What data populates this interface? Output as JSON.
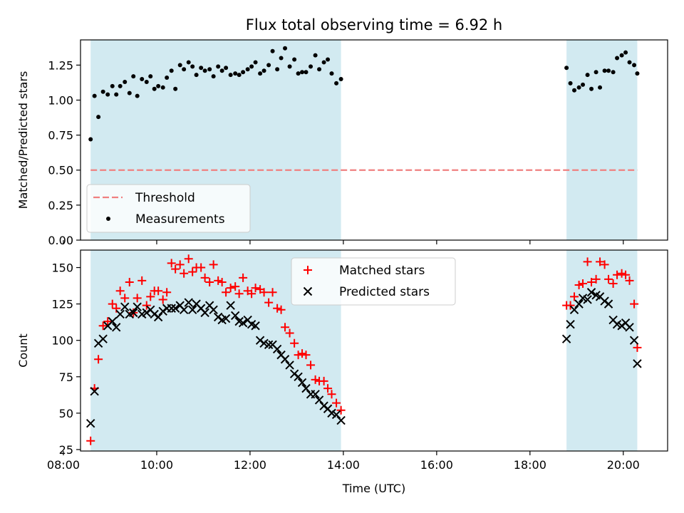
{
  "figure": {
    "title": "Flux total observing time = 6.92 h"
  },
  "chart_data": [
    {
      "type": "scatter",
      "ylabel": "Matched/Predicted stars",
      "xlim": [
        "08:22",
        "20:57"
      ],
      "ylim": [
        0,
        1.43
      ],
      "yticks": [
        "0.00",
        "0.25",
        "0.50",
        "0.75",
        "1.00",
        "1.25"
      ],
      "shaded_intervals": [
        [
          "08:35",
          "13:57"
        ],
        [
          "18:47",
          "20:18"
        ]
      ],
      "colors": {
        "shade": "#add8e6",
        "threshold": "#f08080",
        "points": "#000000"
      },
      "legend_position": "lower-left",
      "threshold": {
        "name": "Threshold",
        "y": 0.5,
        "x_start": "08:35",
        "x_end": "20:18"
      },
      "series": [
        {
          "name": "Measurements",
          "x": [
            "08:35",
            "08:40",
            "08:45",
            "08:51",
            "08:57",
            "09:03",
            "09:08",
            "09:13",
            "09:19",
            "09:25",
            "09:30",
            "09:35",
            "09:41",
            "09:47",
            "09:52",
            "09:57",
            "10:02",
            "10:08",
            "10:13",
            "10:19",
            "10:24",
            "10:30",
            "10:35",
            "10:41",
            "10:46",
            "10:51",
            "10:57",
            "11:02",
            "11:08",
            "11:13",
            "11:19",
            "11:24",
            "11:29",
            "11:35",
            "11:41",
            "11:46",
            "11:51",
            "11:57",
            "12:02",
            "12:07",
            "12:13",
            "12:18",
            "12:24",
            "12:29",
            "12:35",
            "12:40",
            "12:45",
            "12:51",
            "12:57",
            "13:02",
            "13:07",
            "13:12",
            "13:18",
            "13:24",
            "13:29",
            "13:35",
            "13:40",
            "13:45",
            "13:51",
            "13:57",
            "18:47",
            "18:52",
            "18:57",
            "19:03",
            "19:08",
            "19:14",
            "19:19",
            "19:25",
            "19:30",
            "19:36",
            "19:41",
            "19:47",
            "19:52",
            "19:58",
            "20:03",
            "20:08",
            "20:14",
            "20:18"
          ],
          "y": [
            0.72,
            1.03,
            0.88,
            1.06,
            1.04,
            1.1,
            1.04,
            1.1,
            1.13,
            1.05,
            1.17,
            1.03,
            1.15,
            1.13,
            1.17,
            1.08,
            1.1,
            1.09,
            1.16,
            1.21,
            1.08,
            1.25,
            1.22,
            1.27,
            1.24,
            1.18,
            1.23,
            1.21,
            1.22,
            1.17,
            1.24,
            1.21,
            1.23,
            1.18,
            1.19,
            1.18,
            1.2,
            1.22,
            1.24,
            1.27,
            1.19,
            1.21,
            1.25,
            1.35,
            1.22,
            1.3,
            1.37,
            1.24,
            1.29,
            1.19,
            1.2,
            1.2,
            1.24,
            1.32,
            1.22,
            1.27,
            1.29,
            1.19,
            1.12,
            1.15,
            1.23,
            1.12,
            1.07,
            1.09,
            1.11,
            1.18,
            1.08,
            1.2,
            1.09,
            1.21,
            1.21,
            1.2,
            1.3,
            1.32,
            1.34,
            1.27,
            1.25,
            1.19
          ]
        }
      ]
    },
    {
      "type": "scatter",
      "xlabel": "Time (UTC)",
      "ylabel": "Count",
      "xlim": [
        "08:22",
        "20:57"
      ],
      "ylim": [
        24,
        162
      ],
      "yticks": [
        "25",
        "50",
        "75",
        "100",
        "125",
        "150"
      ],
      "xticks": [
        "08:00",
        "10:00",
        "12:00",
        "14:00",
        "16:00",
        "18:00",
        "20:00"
      ],
      "shaded_intervals": [
        [
          "08:35",
          "13:57"
        ],
        [
          "18:47",
          "20:18"
        ]
      ],
      "legend_position": "upper-center",
      "colors": {
        "matched": "#ff0000",
        "predicted": "#000000"
      },
      "x": [
        "08:35",
        "08:40",
        "08:45",
        "08:51",
        "08:57",
        "09:03",
        "09:08",
        "09:13",
        "09:19",
        "09:25",
        "09:30",
        "09:35",
        "09:41",
        "09:47",
        "09:52",
        "09:57",
        "10:02",
        "10:08",
        "10:13",
        "10:19",
        "10:24",
        "10:30",
        "10:35",
        "10:41",
        "10:46",
        "10:51",
        "10:57",
        "11:02",
        "11:08",
        "11:13",
        "11:19",
        "11:24",
        "11:29",
        "11:35",
        "11:41",
        "11:46",
        "11:51",
        "11:57",
        "12:02",
        "12:07",
        "12:13",
        "12:18",
        "12:24",
        "12:29",
        "12:35",
        "12:40",
        "12:45",
        "12:51",
        "12:57",
        "13:02",
        "13:07",
        "13:12",
        "13:18",
        "13:24",
        "13:29",
        "13:35",
        "13:40",
        "13:45",
        "13:51",
        "13:57",
        "18:47",
        "18:52",
        "18:57",
        "19:03",
        "19:08",
        "19:14",
        "19:19",
        "19:25",
        "19:30",
        "19:36",
        "19:41",
        "19:47",
        "19:52",
        "19:58",
        "20:03",
        "20:08",
        "20:14",
        "20:18"
      ],
      "series": [
        {
          "name": "Matched stars",
          "marker": "plus",
          "values": [
            31,
            67,
            87,
            110,
            113,
            125,
            122,
            134,
            129,
            140,
            119,
            129,
            141,
            124,
            130,
            134,
            134,
            128,
            133,
            153,
            149,
            152,
            146,
            156,
            147,
            150,
            150,
            143,
            140,
            152,
            141,
            140,
            133,
            136,
            137,
            132,
            143,
            134,
            132,
            136,
            135,
            133,
            126,
            133,
            122,
            121,
            109,
            105,
            98,
            90,
            91,
            90,
            83,
            73,
            72,
            72,
            67,
            63,
            57,
            52,
            124,
            124,
            130,
            138,
            139,
            154,
            140,
            142,
            154,
            152,
            142,
            139,
            145,
            146,
            145,
            141,
            125,
            95
          ]
        },
        {
          "name": "Predicted stars",
          "marker": "cross",
          "values": [
            43,
            65,
            98,
            101,
            110,
            113,
            109,
            118,
            123,
            118,
            119,
            123,
            118,
            119,
            121,
            118,
            116,
            120,
            122,
            122,
            122,
            124,
            121,
            126,
            121,
            125,
            122,
            119,
            124,
            121,
            116,
            114,
            115,
            124,
            117,
            113,
            112,
            114,
            111,
            110,
            100,
            98,
            97,
            97,
            94,
            90,
            87,
            83,
            77,
            75,
            71,
            67,
            63,
            63,
            59,
            55,
            53,
            50,
            49,
            45,
            101,
            111,
            121,
            125,
            129,
            128,
            133,
            131,
            130,
            127,
            125,
            114,
            111,
            110,
            112,
            109,
            100,
            84
          ]
        }
      ]
    }
  ]
}
